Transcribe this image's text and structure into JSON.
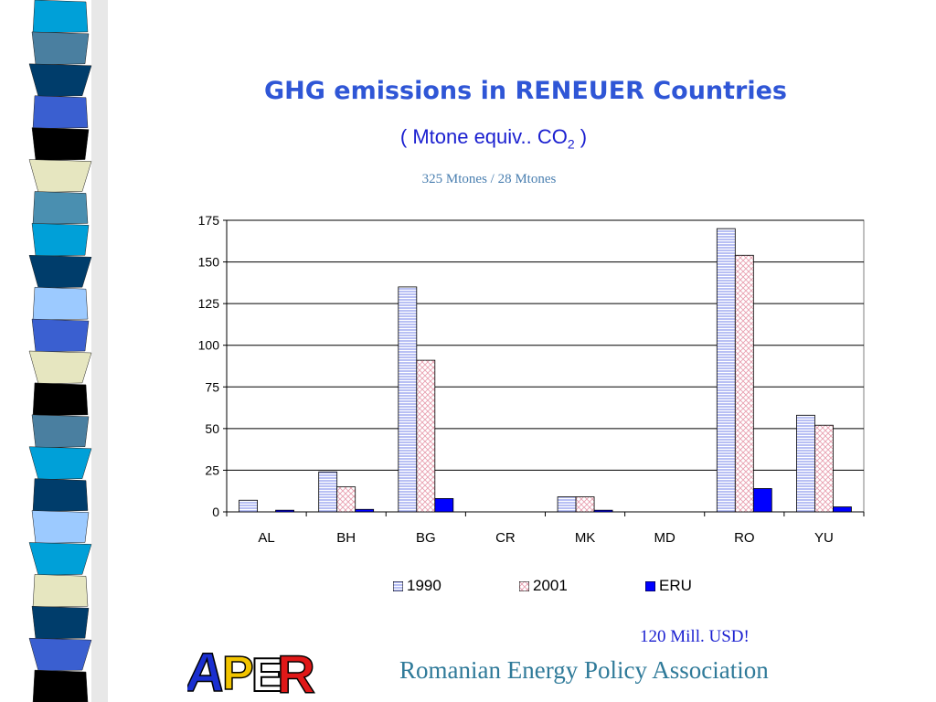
{
  "slide": {
    "title": "GHG emissions in RENEUER Countries",
    "subtitle_main": "( Mtone equiv.. CO",
    "subtitle_sub": "2",
    "subtitle_end": " )",
    "note": "325 Mtones / 28 Mtones",
    "footer_usd": "120 Mill. USD!",
    "footer_association": "Romanian Energy Policy Association",
    "logo_text": "APER"
  },
  "chart_data": {
    "type": "bar",
    "categories": [
      "AL",
      "BH",
      "BG",
      "CR",
      "MK",
      "MD",
      "RO",
      "YU"
    ],
    "series": [
      {
        "name": "1990",
        "values": [
          7,
          24,
          135,
          0,
          9,
          0,
          170,
          58
        ],
        "color": "#9aa4f0",
        "pattern": "horizontal-lines"
      },
      {
        "name": "2001",
        "values": [
          0,
          15,
          91,
          0,
          9,
          0,
          154,
          52
        ],
        "color": "#e8a0b0",
        "pattern": "crosshatch"
      },
      {
        "name": "ERU",
        "values": [
          1,
          1.5,
          8,
          0,
          1,
          0,
          14,
          3
        ],
        "color": "#0000ff",
        "pattern": "solid"
      }
    ],
    "yticks": [
      "0",
      "25",
      "50",
      "75",
      "100",
      "125",
      "150",
      "175"
    ],
    "ylim": [
      0,
      175
    ],
    "grid": true,
    "legend_position": "bottom"
  },
  "colors": {
    "title": "#2f56d6",
    "subtitle": "#1a1fd0",
    "note": "#4a7fb0",
    "association": "#2f7a99"
  },
  "decor": {
    "strip_colors": [
      "#00a0d8",
      "#4a7fa0",
      "#003d6b",
      "#3a5fd0",
      "#000000",
      "#e6e6c0",
      "#4a8fb0",
      "#00a0d8",
      "#003d6b",
      "#9ccaff",
      "#3a5fd0",
      "#e6e6c0",
      "#000000",
      "#4a7fa0",
      "#00a0d8",
      "#003d6b",
      "#9ccaff",
      "#00a0d8",
      "#e6e6c0",
      "#003d6b",
      "#3a5fd0",
      "#000000"
    ]
  }
}
